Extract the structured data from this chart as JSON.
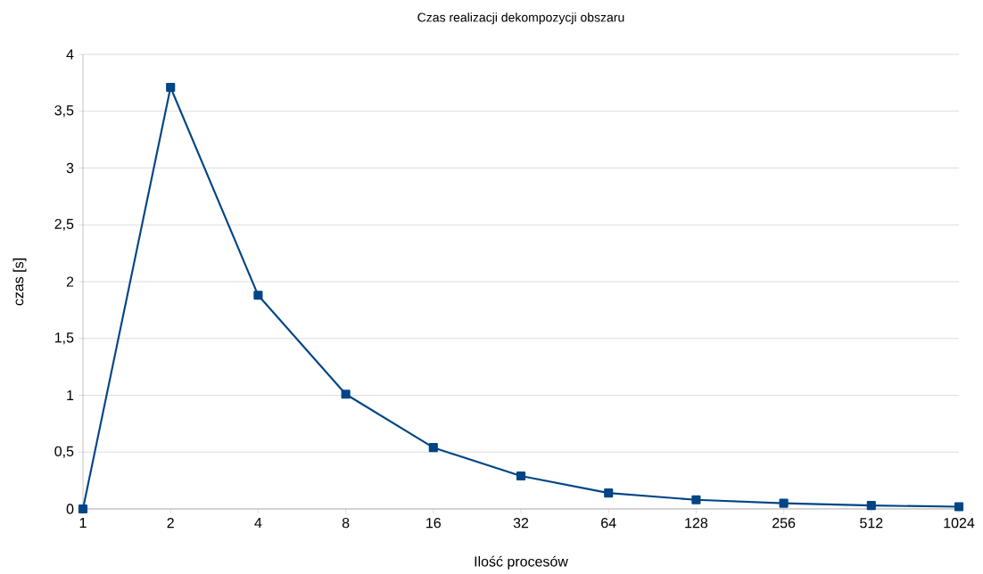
{
  "chart_data": {
    "type": "line",
    "title": "Czas realizacji dekompozycji obszaru",
    "xlabel": "Ilość procesów",
    "ylabel": "czas [s]",
    "categories": [
      "1",
      "2",
      "4",
      "8",
      "16",
      "32",
      "64",
      "128",
      "256",
      "512",
      "1024"
    ],
    "series": [
      {
        "color": "#004586",
        "values": [
          0,
          3.71,
          1.88,
          1.01,
          0.54,
          0.29,
          0.14,
          0.08,
          0.05,
          0.03,
          0.02
        ]
      }
    ],
    "ylim": [
      0,
      4
    ],
    "yticks": [
      0,
      {
        "value": 0.5,
        "label": "0,5"
      },
      1,
      {
        "value": 1.5,
        "label": "1,5"
      },
      2,
      {
        "value": 2.5,
        "label": "2,5"
      },
      3,
      {
        "value": 3.5,
        "label": "3,5"
      },
      4
    ],
    "grid": "y",
    "marker": "square",
    "line_style": "solid"
  }
}
